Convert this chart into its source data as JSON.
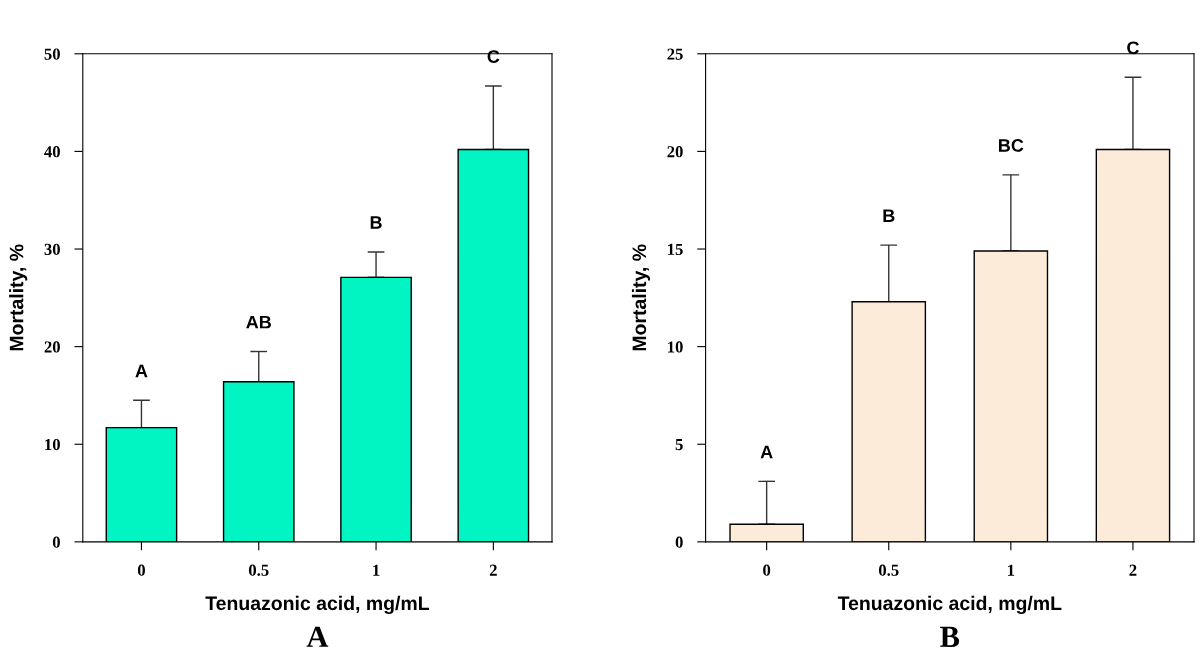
{
  "chart_data": [
    {
      "type": "bar",
      "title": "A",
      "xlabel": "Tenuazonic acid, mg/mL",
      "ylabel": "Mortality, %",
      "categories": [
        "0",
        "0.5",
        "1",
        "2"
      ],
      "values": [
        11.7,
        16.4,
        27.1,
        40.2
      ],
      "errors": [
        [
          11.7,
          14.5
        ],
        [
          16.4,
          19.5
        ],
        [
          27.1,
          29.7
        ],
        [
          40.2,
          46.7
        ]
      ],
      "color": "#00f5c3",
      "ylim": [
        0,
        50
      ],
      "yticks": [
        0,
        10,
        20,
        30,
        40,
        50
      ],
      "grid": false,
      "annotations": [
        "A",
        "AB",
        "B",
        "C"
      ]
    },
    {
      "type": "bar",
      "title": "B",
      "xlabel": "Tenuazonic acid, mg/mL",
      "ylabel": "Mortality, %",
      "categories": [
        "0",
        "0.5",
        "1",
        "2"
      ],
      "values": [
        0.9,
        12.3,
        14.9,
        20.1
      ],
      "errors": [
        [
          0.9,
          3.1
        ],
        [
          12.3,
          15.2
        ],
        [
          14.9,
          18.8
        ],
        [
          20.1,
          23.8
        ]
      ],
      "color": "#fdebd9",
      "ylim": [
        0,
        25
      ],
      "yticks": [
        0,
        5,
        10,
        15,
        20,
        25
      ],
      "grid": false,
      "annotations": [
        "A",
        "B",
        "BC",
        "C"
      ]
    }
  ]
}
